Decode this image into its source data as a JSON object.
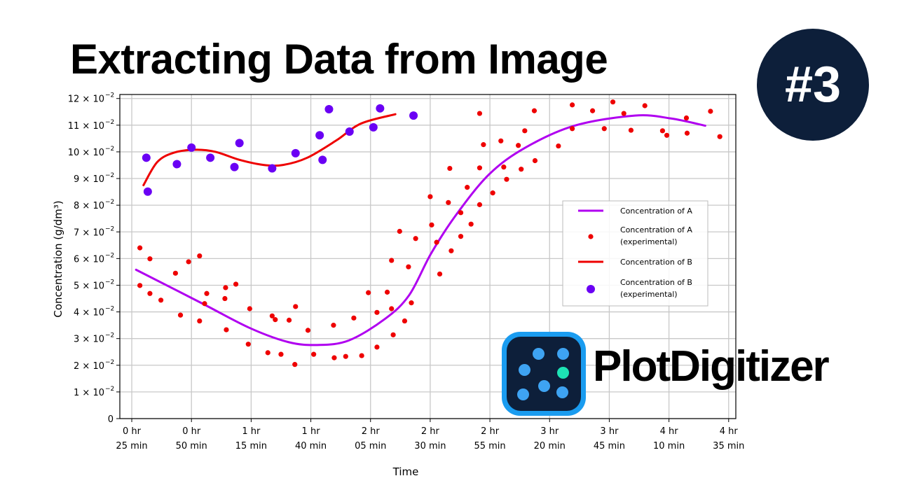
{
  "title": "Extracting Data from Image",
  "badge": "#3",
  "brand": {
    "name": "PlotDigitizer",
    "colors": {
      "tile_border": "#1a9cf0",
      "tile_bg": "#0d1f3a",
      "dot": "#3ea3f2",
      "dot_accent": "#1de3b5"
    }
  },
  "chart_data": {
    "type": "scatter",
    "xlabel": "Time",
    "ylabel": "Concentration (g/dm³)",
    "grid": true,
    "legend_position": "right",
    "xlim": [
      20,
      278
    ],
    "ylim": [
      0,
      0.1215
    ],
    "x_unit": "minutes",
    "x_ticks": [
      {
        "value": 25,
        "line1": "0 hr",
        "line2": "25 min"
      },
      {
        "value": 50,
        "line1": "0 hr",
        "line2": "50 min"
      },
      {
        "value": 75,
        "line1": "1 hr",
        "line2": "15 min"
      },
      {
        "value": 100,
        "line1": "1 hr",
        "line2": "40 min"
      },
      {
        "value": 125,
        "line1": "2 hr",
        "line2": "05 min"
      },
      {
        "value": 150,
        "line1": "2 hr",
        "line2": "30 min"
      },
      {
        "value": 175,
        "line1": "2 hr",
        "line2": "55 min"
      },
      {
        "value": 200,
        "line1": "3 hr",
        "line2": "20 min"
      },
      {
        "value": 225,
        "line1": "3 hr",
        "line2": "45 min"
      },
      {
        "value": 250,
        "line1": "4 hr",
        "line2": "10 min"
      },
      {
        "value": 275,
        "line1": "4 hr",
        "line2": "35 min"
      }
    ],
    "y_ticks": [
      {
        "value": 0,
        "mant": "0",
        "exp": ""
      },
      {
        "value": 0.01,
        "mant": "1 × 10",
        "exp": "−2"
      },
      {
        "value": 0.02,
        "mant": "2 × 10",
        "exp": "−2"
      },
      {
        "value": 0.03,
        "mant": "3 × 10",
        "exp": "−2"
      },
      {
        "value": 0.04,
        "mant": "4 × 10",
        "exp": "−2"
      },
      {
        "value": 0.05,
        "mant": "5 × 10",
        "exp": "−2"
      },
      {
        "value": 0.06,
        "mant": "6 × 10",
        "exp": "−2"
      },
      {
        "value": 0.07,
        "mant": "7 × 10",
        "exp": "−2"
      },
      {
        "value": 0.08,
        "mant": "8 × 10",
        "exp": "−2"
      },
      {
        "value": 0.09,
        "mant": "9 × 10",
        "exp": "−2"
      },
      {
        "value": 0.1,
        "mant": "10 × 10",
        "exp": "−2"
      },
      {
        "value": 0.11,
        "mant": "11 × 10",
        "exp": "−2"
      },
      {
        "value": 0.12,
        "mant": "12 × 10",
        "exp": "−2"
      }
    ],
    "series": [
      {
        "name": "Concentration of A",
        "kind": "line",
        "color": "#b000f0",
        "points": [
          [
            26.8,
            0.0558
          ],
          [
            54.0,
            0.0434
          ],
          [
            74.1,
            0.0341
          ],
          [
            90.5,
            0.0287
          ],
          [
            102.7,
            0.0276
          ],
          [
            115.9,
            0.0293
          ],
          [
            131.1,
            0.0374
          ],
          [
            141.2,
            0.0463
          ],
          [
            150.3,
            0.0618
          ],
          [
            160.7,
            0.0762
          ],
          [
            174.7,
            0.0916
          ],
          [
            189.9,
            0.1016
          ],
          [
            210.4,
            0.1098
          ],
          [
            235.7,
            0.1136
          ],
          [
            250.9,
            0.1125
          ],
          [
            265.2,
            0.1098
          ]
        ]
      },
      {
        "name": "Concentration of A\n(experimental)",
        "label_line1": "Concentration of A",
        "label_line2": "(experimental)",
        "kind": "scatter",
        "color": "#ee0000",
        "points": [
          [
            28.4,
            0.064
          ],
          [
            28.4,
            0.0499
          ],
          [
            32.6,
            0.0599
          ],
          [
            32.6,
            0.0469
          ],
          [
            37.2,
            0.0444
          ],
          [
            43.3,
            0.0545
          ],
          [
            45.4,
            0.0388
          ],
          [
            48.8,
            0.0588
          ],
          [
            53.4,
            0.061
          ],
          [
            53.4,
            0.0366
          ],
          [
            55.5,
            0.0431
          ],
          [
            56.4,
            0.0469
          ],
          [
            64.0,
            0.045
          ],
          [
            64.3,
            0.0491
          ],
          [
            64.6,
            0.0333
          ],
          [
            68.6,
            0.0504
          ],
          [
            73.8,
            0.0279
          ],
          [
            74.4,
            0.0412
          ],
          [
            82.0,
            0.0247
          ],
          [
            83.8,
            0.0385
          ],
          [
            85.1,
            0.0371
          ],
          [
            87.5,
            0.0241
          ],
          [
            90.9,
            0.0369
          ],
          [
            93.3,
            0.0203
          ],
          [
            93.6,
            0.042
          ],
          [
            98.8,
            0.0331
          ],
          [
            101.2,
            0.0241
          ],
          [
            109.5,
            0.035
          ],
          [
            109.8,
            0.0228
          ],
          [
            114.6,
            0.0233
          ],
          [
            118.0,
            0.0377
          ],
          [
            121.3,
            0.0236
          ],
          [
            124.1,
            0.0472
          ],
          [
            127.7,
            0.0398
          ],
          [
            127.7,
            0.0268
          ],
          [
            132.0,
            0.0474
          ],
          [
            133.8,
            0.0593
          ],
          [
            133.8,
            0.0412
          ],
          [
            134.5,
            0.0314
          ],
          [
            137.2,
            0.0702
          ],
          [
            139.3,
            0.0366
          ],
          [
            140.9,
            0.0569
          ],
          [
            142.1,
            0.0434
          ],
          [
            143.9,
            0.0675
          ],
          [
            150.0,
            0.0832
          ],
          [
            150.6,
            0.0726
          ],
          [
            152.7,
            0.0661
          ],
          [
            154.0,
            0.0542
          ],
          [
            157.6,
            0.081
          ],
          [
            158.2,
            0.0938
          ],
          [
            158.8,
            0.0629
          ],
          [
            162.8,
            0.0772
          ],
          [
            162.8,
            0.0683
          ],
          [
            165.5,
            0.0867
          ],
          [
            167.1,
            0.0729
          ],
          [
            170.7,
            0.1144
          ],
          [
            170.7,
            0.094
          ],
          [
            170.7,
            0.0802
          ],
          [
            172.3,
            0.1027
          ],
          [
            176.2,
            0.0846
          ],
          [
            179.6,
            0.1041
          ],
          [
            180.8,
            0.0943
          ],
          [
            182.0,
            0.0897
          ],
          [
            186.9,
            0.1024
          ],
          [
            188.1,
            0.0935
          ],
          [
            189.6,
            0.1079
          ],
          [
            193.6,
            0.1154
          ],
          [
            193.9,
            0.0967
          ],
          [
            203.7,
            0.1022
          ],
          [
            209.5,
            0.1176
          ],
          [
            209.5,
            0.1087
          ],
          [
            218.0,
            0.1154
          ],
          [
            222.9,
            0.1087
          ],
          [
            226.5,
            0.1187
          ],
          [
            231.1,
            0.1144
          ],
          [
            234.1,
            0.1081
          ],
          [
            239.9,
            0.1173
          ],
          [
            247.3,
            0.1079
          ],
          [
            249.1,
            0.1062
          ],
          [
            257.3,
            0.1127
          ],
          [
            257.6,
            0.107
          ],
          [
            267.4,
            0.1152
          ],
          [
            271.3,
            0.1057
          ]
        ]
      },
      {
        "name": "Concentration of B",
        "kind": "line",
        "color": "#ee0000",
        "points": [
          [
            29.9,
            0.0875
          ],
          [
            35.7,
            0.0962
          ],
          [
            42.7,
            0.0997
          ],
          [
            51.8,
            0.1008
          ],
          [
            60.1,
            0.1
          ],
          [
            70.1,
            0.097
          ],
          [
            80.2,
            0.0951
          ],
          [
            88.4,
            0.0951
          ],
          [
            98.5,
            0.0978
          ],
          [
            110.7,
            0.1043
          ],
          [
            121.0,
            0.1106
          ],
          [
            135.4,
            0.1141
          ]
        ]
      },
      {
        "name": "Concentration of B\n(experimental)",
        "label_line1": "Concentration of B",
        "label_line2": "(experimental)",
        "kind": "scatter",
        "color": "#6a00f4",
        "points": [
          [
            31.1,
            0.0978
          ],
          [
            31.7,
            0.0851
          ],
          [
            43.9,
            0.0954
          ],
          [
            50.0,
            0.1016
          ],
          [
            57.9,
            0.0978
          ],
          [
            68.0,
            0.0943
          ],
          [
            70.1,
            0.1033
          ],
          [
            83.8,
            0.0938
          ],
          [
            93.6,
            0.0995
          ],
          [
            103.7,
            0.1062
          ],
          [
            104.9,
            0.097
          ],
          [
            107.6,
            0.116
          ],
          [
            116.2,
            0.1076
          ],
          [
            126.2,
            0.1092
          ],
          [
            129.0,
            0.1163
          ],
          [
            143.0,
            0.1136
          ]
        ]
      }
    ]
  }
}
